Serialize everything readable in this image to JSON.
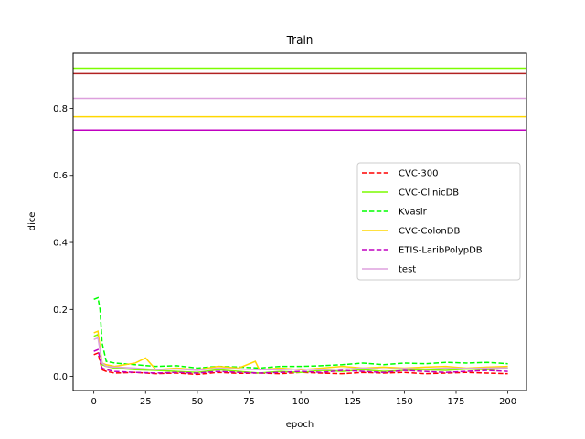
{
  "chart_data": {
    "type": "line",
    "title": "Train",
    "xlabel": "epoch",
    "ylabel": "dice",
    "xlim": [
      -10,
      209
    ],
    "ylim": [
      -0.042,
      0.965
    ],
    "xticks": [
      0,
      25,
      50,
      75,
      100,
      125,
      150,
      175,
      200
    ],
    "yticks": [
      0.0,
      0.2,
      0.4,
      0.6,
      0.8
    ],
    "xtick_labels": [
      "0",
      "25",
      "50",
      "75",
      "100",
      "125",
      "150",
      "175",
      "200"
    ],
    "ytick_labels": [
      "0.0",
      "0.2",
      "0.4",
      "0.6",
      "0.8"
    ],
    "grid": false,
    "legend_position": "center-right",
    "reference_lines": [
      {
        "y": 0.92,
        "color": "#7CFC00"
      },
      {
        "y": 0.904,
        "color": "#B22222"
      },
      {
        "y": 0.83,
        "color": "#DDA0DD"
      },
      {
        "y": 0.775,
        "color": "#FFD700"
      },
      {
        "y": 0.735,
        "color": "#C000C0"
      }
    ],
    "series": [
      {
        "name": "CVC-300",
        "color": "#FF0000",
        "dash": true,
        "points": [
          [
            0,
            0.065
          ],
          [
            2,
            0.07
          ],
          [
            4,
            0.02
          ],
          [
            6,
            0.015
          ],
          [
            10,
            0.01
          ],
          [
            20,
            0.012
          ],
          [
            30,
            0.008
          ],
          [
            40,
            0.01
          ],
          [
            50,
            0.006
          ],
          [
            60,
            0.012
          ],
          [
            70,
            0.009
          ],
          [
            80,
            0.01
          ],
          [
            90,
            0.008
          ],
          [
            100,
            0.012
          ],
          [
            110,
            0.01
          ],
          [
            120,
            0.008
          ],
          [
            130,
            0.012
          ],
          [
            140,
            0.01
          ],
          [
            150,
            0.012
          ],
          [
            160,
            0.008
          ],
          [
            170,
            0.01
          ],
          [
            180,
            0.012
          ],
          [
            190,
            0.01
          ],
          [
            200,
            0.008
          ]
        ]
      },
      {
        "name": "CVC-ClinicDB",
        "color": "#7CFC00",
        "dash": false,
        "points": [
          [
            0,
            0.12
          ],
          [
            2,
            0.125
          ],
          [
            4,
            0.035
          ],
          [
            6,
            0.03
          ],
          [
            10,
            0.025
          ],
          [
            20,
            0.02
          ],
          [
            30,
            0.018
          ],
          [
            40,
            0.015
          ],
          [
            50,
            0.012
          ],
          [
            60,
            0.02
          ],
          [
            70,
            0.015
          ],
          [
            80,
            0.01
          ],
          [
            90,
            0.015
          ],
          [
            100,
            0.012
          ],
          [
            110,
            0.018
          ],
          [
            120,
            0.015
          ],
          [
            130,
            0.02
          ],
          [
            140,
            0.015
          ],
          [
            150,
            0.018
          ],
          [
            160,
            0.02
          ],
          [
            170,
            0.018
          ],
          [
            180,
            0.022
          ],
          [
            190,
            0.02
          ],
          [
            200,
            0.025
          ]
        ]
      },
      {
        "name": "Kvasir",
        "color": "#00FF00",
        "dash": true,
        "points": [
          [
            0,
            0.23
          ],
          [
            2,
            0.235
          ],
          [
            3,
            0.2
          ],
          [
            4,
            0.1
          ],
          [
            6,
            0.045
          ],
          [
            10,
            0.04
          ],
          [
            20,
            0.035
          ],
          [
            30,
            0.03
          ],
          [
            40,
            0.032
          ],
          [
            50,
            0.025
          ],
          [
            60,
            0.03
          ],
          [
            70,
            0.028
          ],
          [
            80,
            0.025
          ],
          [
            90,
            0.03
          ],
          [
            100,
            0.03
          ],
          [
            110,
            0.032
          ],
          [
            120,
            0.035
          ],
          [
            130,
            0.04
          ],
          [
            140,
            0.035
          ],
          [
            150,
            0.04
          ],
          [
            160,
            0.038
          ],
          [
            170,
            0.042
          ],
          [
            180,
            0.04
          ],
          [
            190,
            0.042
          ],
          [
            200,
            0.038
          ]
        ]
      },
      {
        "name": "CVC-ColonDB",
        "color": "#FFD700",
        "dash": false,
        "points": [
          [
            0,
            0.13
          ],
          [
            2,
            0.135
          ],
          [
            4,
            0.04
          ],
          [
            6,
            0.035
          ],
          [
            10,
            0.03
          ],
          [
            20,
            0.04
          ],
          [
            25,
            0.055
          ],
          [
            30,
            0.02
          ],
          [
            40,
            0.025
          ],
          [
            50,
            0.02
          ],
          [
            60,
            0.03
          ],
          [
            70,
            0.025
          ],
          [
            78,
            0.045
          ],
          [
            80,
            0.02
          ],
          [
            90,
            0.025
          ],
          [
            100,
            0.02
          ],
          [
            110,
            0.025
          ],
          [
            120,
            0.03
          ],
          [
            130,
            0.025
          ],
          [
            140,
            0.028
          ],
          [
            150,
            0.025
          ],
          [
            160,
            0.028
          ],
          [
            170,
            0.03
          ],
          [
            180,
            0.025
          ],
          [
            190,
            0.028
          ],
          [
            200,
            0.03
          ]
        ]
      },
      {
        "name": "ETIS-LaribPolypDB",
        "color": "#C000C0",
        "dash": true,
        "points": [
          [
            0,
            0.075
          ],
          [
            2,
            0.08
          ],
          [
            4,
            0.025
          ],
          [
            6,
            0.02
          ],
          [
            10,
            0.015
          ],
          [
            20,
            0.012
          ],
          [
            30,
            0.01
          ],
          [
            40,
            0.012
          ],
          [
            50,
            0.01
          ],
          [
            60,
            0.015
          ],
          [
            70,
            0.012
          ],
          [
            80,
            0.01
          ],
          [
            90,
            0.012
          ],
          [
            100,
            0.015
          ],
          [
            110,
            0.012
          ],
          [
            120,
            0.018
          ],
          [
            130,
            0.015
          ],
          [
            140,
            0.012
          ],
          [
            150,
            0.018
          ],
          [
            160,
            0.015
          ],
          [
            170,
            0.012
          ],
          [
            180,
            0.015
          ],
          [
            190,
            0.018
          ],
          [
            200,
            0.015
          ]
        ]
      },
      {
        "name": "test",
        "color": "#DDA0DD",
        "dash": false,
        "points": [
          [
            0,
            0.11
          ],
          [
            2,
            0.115
          ],
          [
            4,
            0.04
          ],
          [
            6,
            0.03
          ],
          [
            10,
            0.028
          ],
          [
            20,
            0.025
          ],
          [
            30,
            0.02
          ],
          [
            40,
            0.022
          ],
          [
            50,
            0.018
          ],
          [
            60,
            0.025
          ],
          [
            70,
            0.022
          ],
          [
            80,
            0.02
          ],
          [
            90,
            0.02
          ],
          [
            100,
            0.022
          ],
          [
            110,
            0.02
          ],
          [
            120,
            0.022
          ],
          [
            130,
            0.025
          ],
          [
            140,
            0.022
          ],
          [
            150,
            0.024
          ],
          [
            160,
            0.022
          ],
          [
            170,
            0.025
          ],
          [
            180,
            0.024
          ],
          [
            190,
            0.025
          ],
          [
            200,
            0.026
          ]
        ]
      }
    ]
  }
}
